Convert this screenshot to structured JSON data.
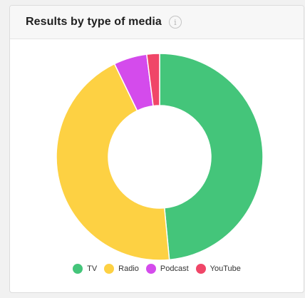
{
  "widget": {
    "title": "Results by type of media",
    "info_icon": "info-icon"
  },
  "chart_data": {
    "type": "pie",
    "variant": "donut",
    "categories": [
      "TV",
      "Radio",
      "Podcast",
      "YouTube"
    ],
    "values": [
      48.5,
      44.3,
      5.2,
      2.0
    ],
    "colors": [
      "#44c57a",
      "#fdd143",
      "#d44bec",
      "#f04668"
    ],
    "legend": "bottom-center"
  }
}
